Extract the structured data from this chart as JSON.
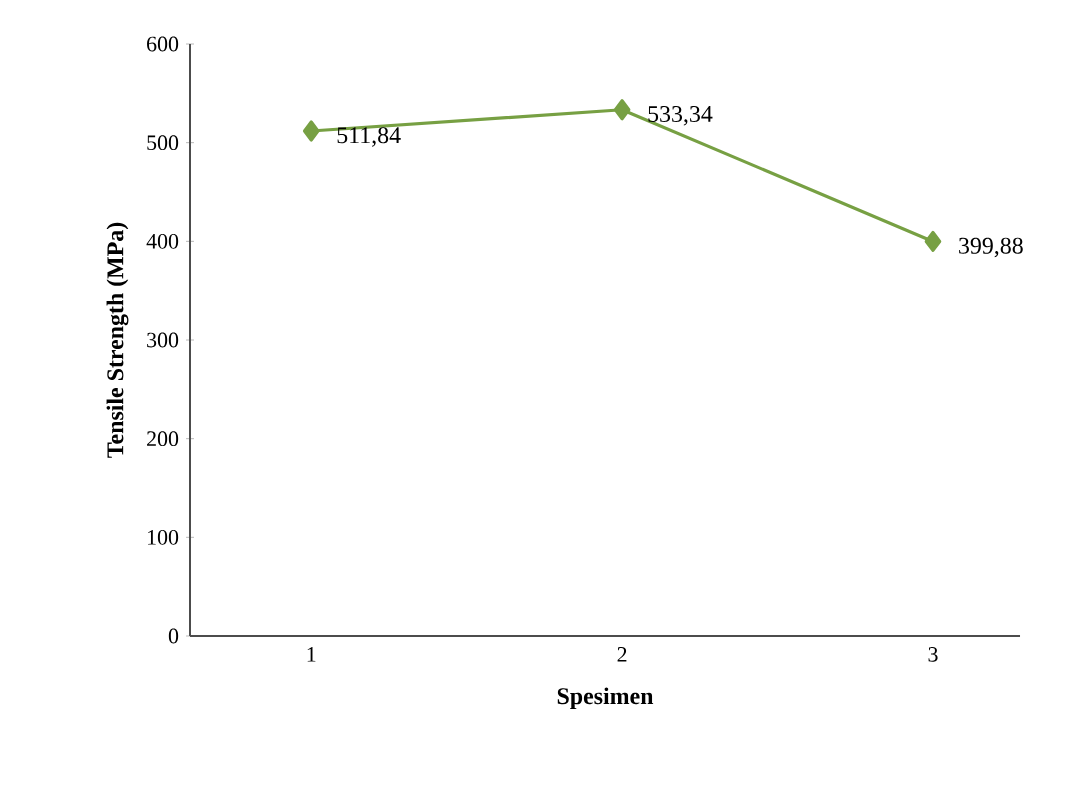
{
  "chart_data": {
    "type": "line",
    "xlabel": "Spesimen",
    "ylabel": "Tensile Strength (MPa)",
    "categories": [
      "1",
      "2",
      "3"
    ],
    "series": [
      {
        "color": "#77a043",
        "values": [
          511.84,
          533.34,
          399.88
        ],
        "value_labels": [
          "511,84",
          "533,34",
          "399,88"
        ]
      }
    ],
    "ylim": [
      0,
      600
    ],
    "yticks": [
      0,
      100,
      200,
      300,
      400,
      500,
      600
    ],
    "marker": "diamond",
    "line_style": "solid"
  }
}
